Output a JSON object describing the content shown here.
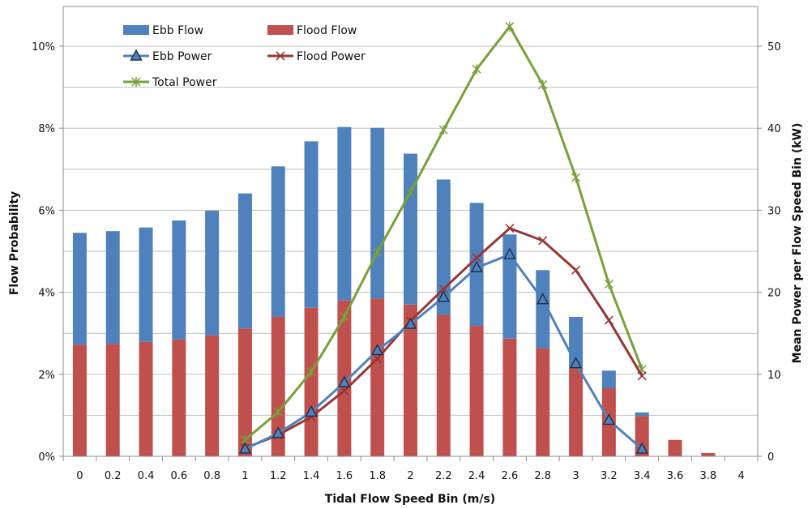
{
  "chart_data": {
    "type": "bar",
    "categories": [
      "0",
      "0.2",
      "0.4",
      "0.6",
      "0.8",
      "1",
      "1.2",
      "1.4",
      "1.6",
      "1.8",
      "2",
      "2.2",
      "2.4",
      "2.6",
      "2.8",
      "3",
      "3.2",
      "3.4",
      "3.6",
      "3.8",
      "4"
    ],
    "xlabel": "Tidal Flow Speed Bin (m/s)",
    "ylabel": "Flow Probability",
    "y2label": "Mean Power per Flow Speed Bin (kW)",
    "ylim": [
      0,
      10
    ],
    "y2lim": [
      0,
      50
    ],
    "yticks": [
      "0%",
      "2%",
      "4%",
      "6%",
      "8%",
      "10%"
    ],
    "y2ticks": [
      "0",
      "10",
      "20",
      "30",
      "40",
      "50"
    ],
    "bar_series": [
      {
        "name": "Flood Flow",
        "color": "#c0504d",
        "axis": "left",
        "values": [
          2.72,
          2.74,
          2.79,
          2.85,
          2.95,
          3.12,
          3.4,
          3.62,
          3.8,
          3.85,
          3.7,
          3.45,
          3.18,
          2.87,
          2.63,
          2.15,
          1.66,
          0.98,
          0.4,
          0.08,
          0.0
        ]
      },
      {
        "name": "Ebb Flow",
        "color": "#4f81bd",
        "axis": "left",
        "values": [
          2.73,
          2.75,
          2.79,
          2.9,
          3.04,
          3.29,
          3.67,
          4.06,
          4.23,
          4.16,
          3.68,
          3.3,
          3.0,
          2.54,
          1.91,
          1.25,
          0.43,
          0.09,
          0.0,
          0.0,
          0.0
        ]
      }
    ],
    "line_series": [
      {
        "name": "Ebb Power",
        "color": "#4f81bd",
        "marker": "triangle",
        "axis": "right",
        "x_start_index": 5,
        "values": [
          0.9,
          2.8,
          5.4,
          9.0,
          12.9,
          16.1,
          19.4,
          23.0,
          24.6,
          19.1,
          11.3,
          4.4,
          0.9
        ]
      },
      {
        "name": "Flood Power",
        "color": "#953735",
        "marker": "x",
        "axis": "right",
        "x_start_index": 5,
        "values": [
          1.0,
          2.6,
          4.8,
          8.0,
          11.9,
          16.5,
          20.4,
          24.2,
          27.8,
          26.3,
          22.7,
          16.6,
          9.8
        ]
      },
      {
        "name": "Total Power",
        "color": "#77a03a",
        "marker": "star",
        "axis": "right",
        "x_start_index": 5,
        "values": [
          2.0,
          5.4,
          10.3,
          17.0,
          24.9,
          32.2,
          39.8,
          47.2,
          52.4,
          45.3,
          34.0,
          21.0,
          10.6
        ]
      }
    ],
    "legend_location": "top-left",
    "grid": "horizontal"
  }
}
